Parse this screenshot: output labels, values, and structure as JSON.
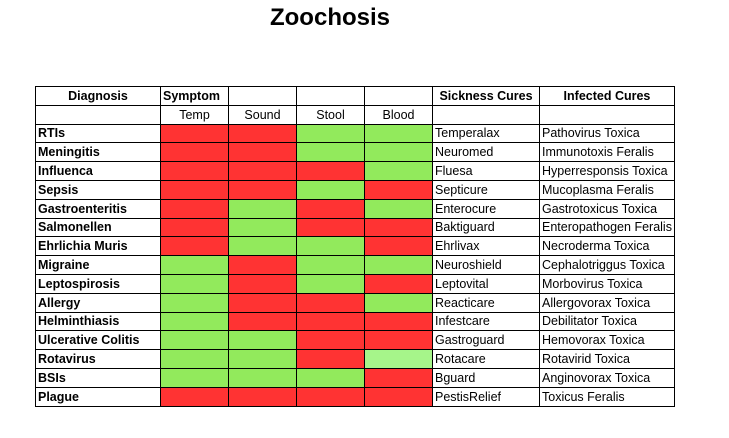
{
  "title": "Zoochosis",
  "headers": {
    "diagnosis": "Diagnosis",
    "symptom": "Symptom",
    "sickness_cures": "Sickness Cures",
    "infected_cures": "Infected Cures",
    "temp": "Temp",
    "sound": "Sound",
    "stool": "Stool",
    "blood": "Blood"
  },
  "colors": {
    "R": "#ff3333",
    "G": "#92ea5c",
    "L": "#a6f58a"
  },
  "rows": [
    {
      "diagnosis": "RTIs",
      "cells": [
        "R",
        "R",
        "G",
        "G"
      ],
      "sickness_cure": "Temperalax",
      "infected_cure": "Pathovirus Toxica"
    },
    {
      "diagnosis": "Meningitis",
      "cells": [
        "R",
        "R",
        "G",
        "G"
      ],
      "sickness_cure": "Neuromed",
      "infected_cure": "Immunotoxis Feralis"
    },
    {
      "diagnosis": "Influenca",
      "cells": [
        "R",
        "R",
        "R",
        "G"
      ],
      "sickness_cure": "Fluesa",
      "infected_cure": "Hyperresponsis Toxica"
    },
    {
      "diagnosis": "Sepsis",
      "cells": [
        "R",
        "R",
        "G",
        "R"
      ],
      "sickness_cure": "Septicure",
      "infected_cure": "Mucoplasma Feralis"
    },
    {
      "diagnosis": "Gastroenteritis",
      "cells": [
        "R",
        "G",
        "R",
        "G"
      ],
      "sickness_cure": "Enterocure",
      "infected_cure": "Gastrotoxicus Toxica"
    },
    {
      "diagnosis": "Salmonellen",
      "cells": [
        "R",
        "G",
        "R",
        "R"
      ],
      "sickness_cure": "Baktiguard",
      "infected_cure": "Enteropathogen Feralis"
    },
    {
      "diagnosis": "Ehrlichia Muris",
      "cells": [
        "R",
        "G",
        "G",
        "R"
      ],
      "sickness_cure": "Ehrlivax",
      "infected_cure": "Necroderma Toxica"
    },
    {
      "diagnosis": "Migraine",
      "cells": [
        "G",
        "R",
        "G",
        "G"
      ],
      "sickness_cure": "Neuroshield",
      "infected_cure": "Cephalotriggus Toxica"
    },
    {
      "diagnosis": "Leptospirosis",
      "cells": [
        "G",
        "R",
        "G",
        "R"
      ],
      "sickness_cure": "Leptovital",
      "infected_cure": "Morbovirus Toxica"
    },
    {
      "diagnosis": "Allergy",
      "cells": [
        "G",
        "R",
        "R",
        "G"
      ],
      "sickness_cure": "Reacticare",
      "infected_cure": "Allergovorax Toxica"
    },
    {
      "diagnosis": "Helminthiasis",
      "cells": [
        "G",
        "R",
        "R",
        "R"
      ],
      "sickness_cure": "Infestcare",
      "infected_cure": "Debilitator Toxica"
    },
    {
      "diagnosis": "Ulcerative Colitis",
      "cells": [
        "G",
        "G",
        "R",
        "R"
      ],
      "sickness_cure": "Gastroguard",
      "infected_cure": "Hemovorax Toxica"
    },
    {
      "diagnosis": "Rotavirus",
      "cells": [
        "G",
        "G",
        "R",
        "L"
      ],
      "sickness_cure": "Rotacare",
      "infected_cure": "Rotavirid Toxica"
    },
    {
      "diagnosis": "BSIs",
      "cells": [
        "G",
        "G",
        "G",
        "R"
      ],
      "sickness_cure": "Bguard",
      "infected_cure": "Anginovorax Toxica"
    },
    {
      "diagnosis": "Plague",
      "cells": [
        "R",
        "R",
        "R",
        "R"
      ],
      "sickness_cure": "PestisRelief",
      "infected_cure": "Toxicus Feralis"
    }
  ]
}
